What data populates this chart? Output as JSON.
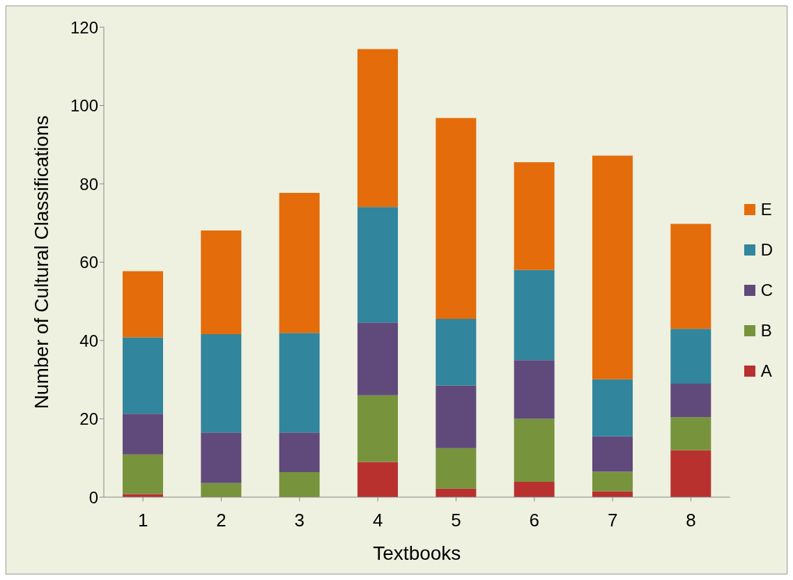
{
  "chart_data": {
    "type": "bar",
    "stacked": true,
    "xlabel": "Textbooks",
    "ylabel": "Number of Cultural Classifications",
    "categories": [
      "1",
      "2",
      "3",
      "4",
      "5",
      "6",
      "7",
      "8"
    ],
    "series": [
      {
        "name": "A",
        "color": "#b8312f",
        "values": [
          0.8,
          0,
          0,
          9,
          2.2,
          3.9,
          1.5,
          12
        ]
      },
      {
        "name": "B",
        "color": "#77933c",
        "values": [
          10.1,
          3.6,
          6.4,
          17,
          10.3,
          16.1,
          5,
          8.4
        ]
      },
      {
        "name": "C",
        "color": "#604a7b",
        "values": [
          10.4,
          12.9,
          10.1,
          18.6,
          16,
          15,
          9,
          8.6
        ]
      },
      {
        "name": "D",
        "color": "#31859c",
        "values": [
          19.5,
          25.1,
          25.4,
          29.5,
          17,
          23,
          14.6,
          14
        ]
      },
      {
        "name": "E",
        "color": "#e46c0a",
        "values": [
          16.9,
          26.5,
          35.8,
          40.3,
          51.3,
          27.5,
          57.1,
          26.8
        ]
      }
    ],
    "ylim": [
      0,
      120
    ],
    "yticks": [
      0,
      20,
      40,
      60,
      80,
      100,
      120
    ],
    "grid": false,
    "legend": "right"
  }
}
